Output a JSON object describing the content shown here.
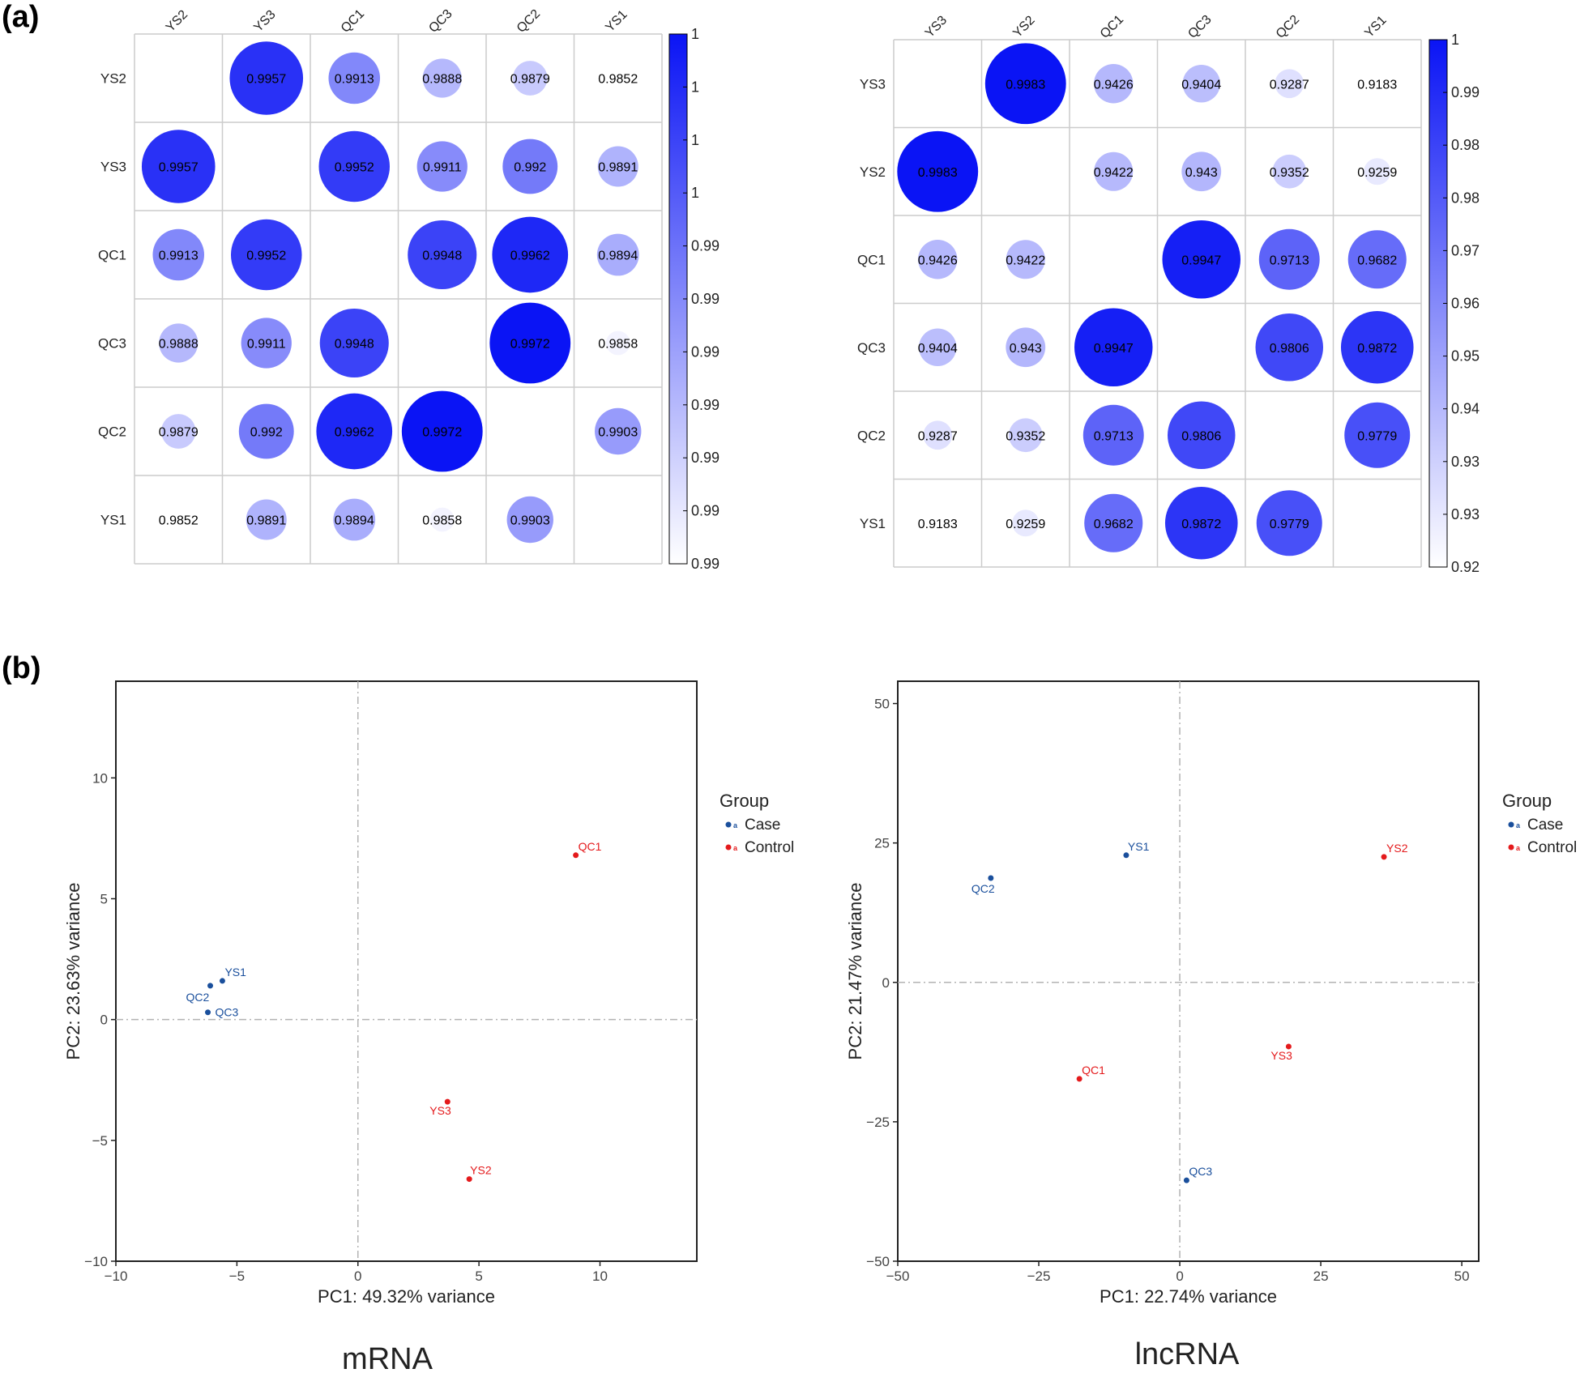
{
  "panel_labels": {
    "a": "(a)",
    "b": "(b)"
  },
  "colors": {
    "case": "#1a4f9c",
    "control": "#e41a1c",
    "circle_max": "#0a14f5",
    "grid": "#cccccc",
    "refline": "#b3b3b3"
  },
  "chart_data": [
    {
      "type": "heatmap",
      "id": "corr_mrna",
      "labels": [
        "YS2",
        "YS3",
        "QC1",
        "QC3",
        "QC2",
        "YS1"
      ],
      "matrix": [
        [
          null,
          0.9957,
          0.9913,
          0.9888,
          0.9879,
          0.9852
        ],
        [
          0.9957,
          null,
          0.9952,
          0.9911,
          0.992,
          0.9891
        ],
        [
          0.9913,
          0.9952,
          null,
          0.9948,
          0.9962,
          0.9894
        ],
        [
          0.9888,
          0.9911,
          0.9948,
          null,
          0.9972,
          0.9858
        ],
        [
          0.9879,
          0.992,
          0.9962,
          0.9972,
          null,
          0.9903
        ],
        [
          0.9852,
          0.9891,
          0.9894,
          0.9858,
          0.9903,
          null
        ]
      ],
      "display": [
        [
          "",
          "0.9957",
          "0.9913",
          "0.9888",
          "0.9879",
          "0.9852"
        ],
        [
          "0.9957",
          "",
          "0.9952",
          "0.9911",
          "0.992",
          "0.9891"
        ],
        [
          "0.9913",
          "0.9952",
          "",
          "0.9948",
          "0.9962",
          "0.9894"
        ],
        [
          "0.9888",
          "0.9911",
          "0.9948",
          "",
          "0.9972",
          "0.9858"
        ],
        [
          "0.9879",
          "0.992",
          "0.9962",
          "0.9972",
          "",
          "0.9903"
        ],
        [
          "0.9852",
          "0.9891",
          "0.9894",
          "0.9858",
          "0.9903",
          ""
        ]
      ],
      "color_range": [
        0.9852,
        0.9972
      ],
      "colorbar_ticks": [
        "1",
        "1",
        "1",
        "1",
        "0.99",
        "0.99",
        "0.99",
        "0.99",
        "0.99",
        "0.99",
        "0.99"
      ]
    },
    {
      "type": "heatmap",
      "id": "corr_lncrna",
      "labels": [
        "YS3",
        "YS2",
        "QC1",
        "QC3",
        "QC2",
        "YS1"
      ],
      "matrix": [
        [
          null,
          0.9983,
          0.9426,
          0.9404,
          0.9287,
          0.9183
        ],
        [
          0.9983,
          null,
          0.9422,
          0.943,
          0.9352,
          0.9259
        ],
        [
          0.9426,
          0.9422,
          null,
          0.9947,
          0.9713,
          0.9682
        ],
        [
          0.9404,
          0.943,
          0.9947,
          null,
          0.9806,
          0.9872
        ],
        [
          0.9287,
          0.9352,
          0.9713,
          0.9806,
          null,
          0.9779
        ],
        [
          0.9183,
          0.9259,
          0.9682,
          0.9872,
          0.9779,
          null
        ]
      ],
      "display": [
        [
          "",
          "0.9983",
          "0.9426",
          "0.9404",
          "0.9287",
          "0.9183"
        ],
        [
          "0.9983",
          "",
          "0.9422",
          "0.943",
          "0.9352",
          "0.9259"
        ],
        [
          "0.9426",
          "0.9422",
          "",
          "0.9947",
          "0.9713",
          "0.9682"
        ],
        [
          "0.9404",
          "0.943",
          "0.9947",
          "",
          "0.9806",
          "0.9872"
        ],
        [
          "0.9287",
          "0.9352",
          "0.9713",
          "0.9806",
          "",
          "0.9779"
        ],
        [
          "0.9183",
          "0.9259",
          "0.9682",
          "0.9872",
          "0.9779",
          ""
        ]
      ],
      "color_range": [
        0.9183,
        0.9983
      ],
      "colorbar_ticks": [
        "1",
        "0.99",
        "0.98",
        "0.98",
        "0.97",
        "0.96",
        "0.95",
        "0.94",
        "0.93",
        "0.93",
        "0.92"
      ]
    },
    {
      "type": "scatter",
      "id": "pca_mrna",
      "title": "mRNA",
      "xlabel": "PC1: 49.32% variance",
      "ylabel": "PC2: 23.63% variance",
      "xlim": [
        -10,
        14
      ],
      "ylim": [
        -10,
        14
      ],
      "xticks": [
        -10,
        -5,
        0,
        5,
        10
      ],
      "yticks": [
        -10,
        -5,
        0,
        5,
        10
      ],
      "xtick_labels": [
        "−10",
        "−5",
        "0",
        "5",
        "10"
      ],
      "ytick_labels": [
        "−10",
        "−5",
        "0",
        "5",
        "10"
      ],
      "legend": {
        "title": "Group",
        "entries": [
          "Case",
          "Control"
        ]
      },
      "points": [
        {
          "label": "YS1",
          "group": "Case",
          "x": -5.6,
          "y": 1.6
        },
        {
          "label": "QC2",
          "group": "Case",
          "x": -6.1,
          "y": 1.4
        },
        {
          "label": "QC3",
          "group": "Case",
          "x": -6.2,
          "y": 0.3
        },
        {
          "label": "QC1",
          "group": "Control",
          "x": 9.0,
          "y": 6.8
        },
        {
          "label": "YS3",
          "group": "Control",
          "x": 3.7,
          "y": -3.4
        },
        {
          "label": "YS2",
          "group": "Control",
          "x": 4.6,
          "y": -6.6
        }
      ]
    },
    {
      "type": "scatter",
      "id": "pca_lncrna",
      "title": "lncRNA",
      "xlabel": "PC1: 22.74% variance",
      "ylabel": "PC2: 21.47% variance",
      "xlim": [
        -50,
        53
      ],
      "ylim": [
        -50,
        54
      ],
      "xticks": [
        -50,
        -25,
        0,
        25,
        50
      ],
      "yticks": [
        -50,
        -25,
        0,
        25,
        50
      ],
      "xtick_labels": [
        "−50",
        "−25",
        "0",
        "25",
        "50"
      ],
      "ytick_labels": [
        "−50",
        "−25",
        "0",
        "25",
        "50"
      ],
      "legend": {
        "title": "Group",
        "entries": [
          "Case",
          "Control"
        ]
      },
      "points": [
        {
          "label": "QC2",
          "group": "Case",
          "x": -33.5,
          "y": 18.7
        },
        {
          "label": "YS1",
          "group": "Case",
          "x": -9.5,
          "y": 22.8
        },
        {
          "label": "QC3",
          "group": "Case",
          "x": 1.2,
          "y": -35.5
        },
        {
          "label": "YS2",
          "group": "Control",
          "x": 36.2,
          "y": 22.5
        },
        {
          "label": "YS3",
          "group": "Control",
          "x": 19.3,
          "y": -11.5
        },
        {
          "label": "QC1",
          "group": "Control",
          "x": -17.8,
          "y": -17.3
        }
      ]
    }
  ]
}
